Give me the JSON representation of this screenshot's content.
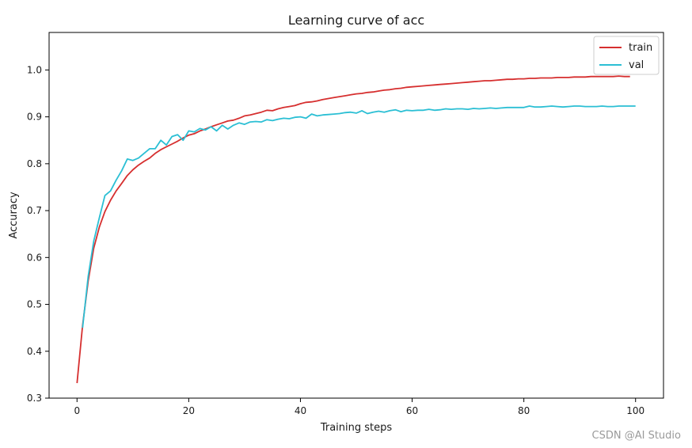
{
  "chart_data": {
    "type": "line",
    "title": "Learning curve of acc",
    "xlabel": "Training steps",
    "ylabel": "Accuracy",
    "xlim": [
      -5,
      105
    ],
    "ylim": [
      0.3,
      1.08
    ],
    "xticks": [
      0,
      20,
      40,
      60,
      80,
      100
    ],
    "yticks": [
      0.3,
      0.4,
      0.5,
      0.6,
      0.7,
      0.8,
      0.9,
      1.0
    ],
    "legend_position": "top-right",
    "grid": false,
    "series": [
      {
        "name": "train",
        "color": "#d62f2f",
        "x": [
          0,
          1,
          2,
          3,
          4,
          5,
          6,
          7,
          8,
          9,
          10,
          11,
          12,
          13,
          14,
          15,
          16,
          17,
          18,
          19,
          20,
          21,
          22,
          23,
          24,
          25,
          26,
          27,
          28,
          29,
          30,
          31,
          32,
          33,
          34,
          35,
          36,
          37,
          38,
          39,
          40,
          41,
          42,
          43,
          44,
          45,
          46,
          47,
          48,
          49,
          50,
          51,
          52,
          53,
          54,
          55,
          56,
          57,
          58,
          59,
          60,
          61,
          62,
          63,
          64,
          65,
          66,
          67,
          68,
          69,
          70,
          71,
          72,
          73,
          74,
          75,
          76,
          77,
          78,
          79,
          80,
          81,
          82,
          83,
          84,
          85,
          86,
          87,
          88,
          89,
          90,
          91,
          92,
          93,
          94,
          95,
          96,
          97,
          98,
          99
        ],
        "values": [
          0.332,
          0.455,
          0.55,
          0.62,
          0.665,
          0.698,
          0.722,
          0.742,
          0.758,
          0.775,
          0.787,
          0.797,
          0.805,
          0.812,
          0.822,
          0.83,
          0.836,
          0.842,
          0.848,
          0.855,
          0.861,
          0.864,
          0.87,
          0.874,
          0.879,
          0.883,
          0.887,
          0.891,
          0.893,
          0.897,
          0.902,
          0.904,
          0.907,
          0.91,
          0.914,
          0.913,
          0.917,
          0.92,
          0.922,
          0.924,
          0.928,
          0.931,
          0.932,
          0.934,
          0.937,
          0.939,
          0.941,
          0.943,
          0.945,
          0.947,
          0.949,
          0.95,
          0.952,
          0.953,
          0.955,
          0.957,
          0.958,
          0.96,
          0.961,
          0.963,
          0.964,
          0.965,
          0.966,
          0.967,
          0.968,
          0.969,
          0.97,
          0.971,
          0.972,
          0.973,
          0.974,
          0.975,
          0.976,
          0.977,
          0.977,
          0.978,
          0.979,
          0.98,
          0.98,
          0.981,
          0.981,
          0.982,
          0.982,
          0.983,
          0.983,
          0.983,
          0.984,
          0.984,
          0.984,
          0.985,
          0.985,
          0.985,
          0.986,
          0.986,
          0.986,
          0.986,
          0.986,
          0.987,
          0.986,
          0.986
        ]
      },
      {
        "name": "val",
        "color": "#2bbfd4",
        "x": [
          1,
          2,
          3,
          4,
          5,
          6,
          7,
          8,
          9,
          10,
          11,
          12,
          13,
          14,
          15,
          16,
          17,
          18,
          19,
          20,
          21,
          22,
          23,
          24,
          25,
          26,
          27,
          28,
          29,
          30,
          31,
          32,
          33,
          34,
          35,
          36,
          37,
          38,
          39,
          40,
          41,
          42,
          43,
          44,
          45,
          46,
          47,
          48,
          49,
          50,
          51,
          52,
          53,
          54,
          55,
          56,
          57,
          58,
          59,
          60,
          61,
          62,
          63,
          64,
          65,
          66,
          67,
          68,
          69,
          70,
          71,
          72,
          73,
          74,
          75,
          76,
          77,
          78,
          79,
          80,
          81,
          82,
          83,
          84,
          85,
          86,
          87,
          88,
          89,
          90,
          91,
          92,
          93,
          94,
          95,
          96,
          97,
          98,
          99,
          100
        ],
        "values": [
          0.45,
          0.56,
          0.635,
          0.685,
          0.732,
          0.742,
          0.765,
          0.785,
          0.81,
          0.807,
          0.812,
          0.822,
          0.832,
          0.832,
          0.85,
          0.84,
          0.858,
          0.862,
          0.85,
          0.87,
          0.868,
          0.875,
          0.872,
          0.879,
          0.87,
          0.882,
          0.874,
          0.882,
          0.887,
          0.884,
          0.889,
          0.89,
          0.889,
          0.894,
          0.892,
          0.895,
          0.897,
          0.896,
          0.899,
          0.9,
          0.897,
          0.906,
          0.902,
          0.904,
          0.905,
          0.906,
          0.907,
          0.909,
          0.91,
          0.908,
          0.913,
          0.907,
          0.91,
          0.912,
          0.91,
          0.913,
          0.915,
          0.911,
          0.914,
          0.913,
          0.914,
          0.914,
          0.916,
          0.914,
          0.915,
          0.917,
          0.916,
          0.917,
          0.917,
          0.916,
          0.918,
          0.917,
          0.918,
          0.919,
          0.918,
          0.919,
          0.92,
          0.92,
          0.92,
          0.92,
          0.923,
          0.921,
          0.921,
          0.922,
          0.923,
          0.922,
          0.921,
          0.922,
          0.923,
          0.923,
          0.922,
          0.922,
          0.922,
          0.923,
          0.922,
          0.922,
          0.923,
          0.923,
          0.923,
          0.923
        ]
      }
    ]
  },
  "watermark": "CSDN @AI Studio"
}
